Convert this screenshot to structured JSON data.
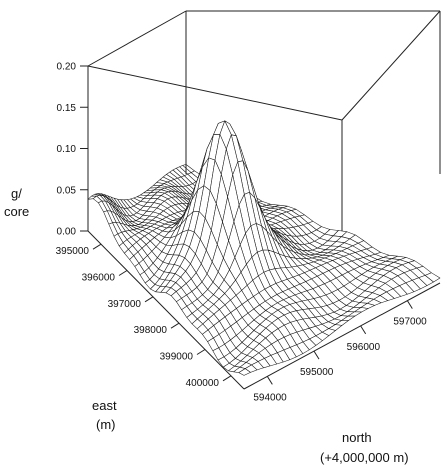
{
  "chart_data": {
    "type": "surface",
    "z_axis": {
      "label_line1": "g/",
      "label_line2": "core",
      "ticks": [
        "0.20",
        "0.15",
        "0.10",
        "0.05",
        "0.00"
      ],
      "range": [
        0.0,
        0.2
      ]
    },
    "east_axis": {
      "label_line1": "east",
      "label_line2": "(m)",
      "ticks": [
        "395000",
        "396000",
        "397000",
        "398000",
        "399000",
        "400000"
      ],
      "range": [
        394500,
        400500
      ]
    },
    "north_axis": {
      "label_line1": "north",
      "label_line2": "(+4,000,000 m)",
      "ticks": [
        "594000",
        "595000",
        "596000",
        "597000"
      ],
      "range": [
        593500,
        597700
      ]
    },
    "surface": {
      "baseline": 0.01,
      "peak": {
        "east": 397500,
        "north": 595200,
        "z": 0.2
      },
      "secondary_peak": {
        "east": 394700,
        "north": 593600,
        "z": 0.04
      }
    },
    "colors": {
      "mesh": "#1a1a1a",
      "box": "#222222",
      "background": "#ffffff"
    }
  }
}
